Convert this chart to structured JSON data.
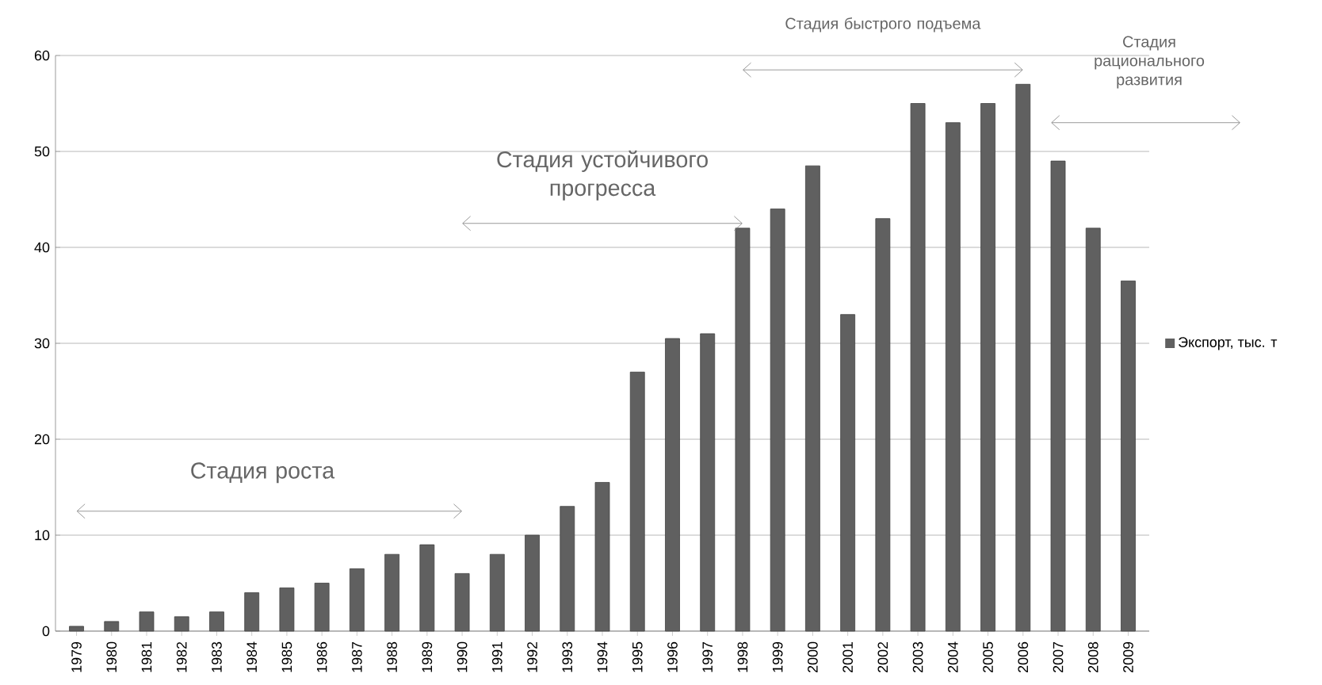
{
  "chart_data": {
    "type": "bar",
    "categories": [
      "1979",
      "1980",
      "1981",
      "1982",
      "1983",
      "1984",
      "1985",
      "1986",
      "1987",
      "1988",
      "1989",
      "1990",
      "1991",
      "1992",
      "1993",
      "1994",
      "1995",
      "1996",
      "1997",
      "1998",
      "1999",
      "2000",
      "2001",
      "2002",
      "2003",
      "2004",
      "2005",
      "2006",
      "2007",
      "2008",
      "2009"
    ],
    "series": [
      {
        "name": "Экспорт, тыс. т",
        "color": "#606060",
        "values": [
          0.5,
          1,
          2,
          1.5,
          2,
          4,
          4.5,
          5,
          6.5,
          8,
          9,
          6,
          8,
          10,
          13,
          15.5,
          27,
          30.5,
          31,
          42,
          44,
          48.5,
          33,
          43,
          55,
          53,
          55,
          57,
          49,
          42,
          36.5
        ]
      }
    ],
    "ylim": [
      0,
      60
    ],
    "yticks": [
      0,
      10,
      20,
      30,
      40,
      50,
      60
    ],
    "grid": "y",
    "legend": "right",
    "annotations": [
      "Стадия роста",
      "Стадия устойчивого прогресса",
      "Стадия быстрого подъема",
      "Стадия рационального развития"
    ]
  }
}
